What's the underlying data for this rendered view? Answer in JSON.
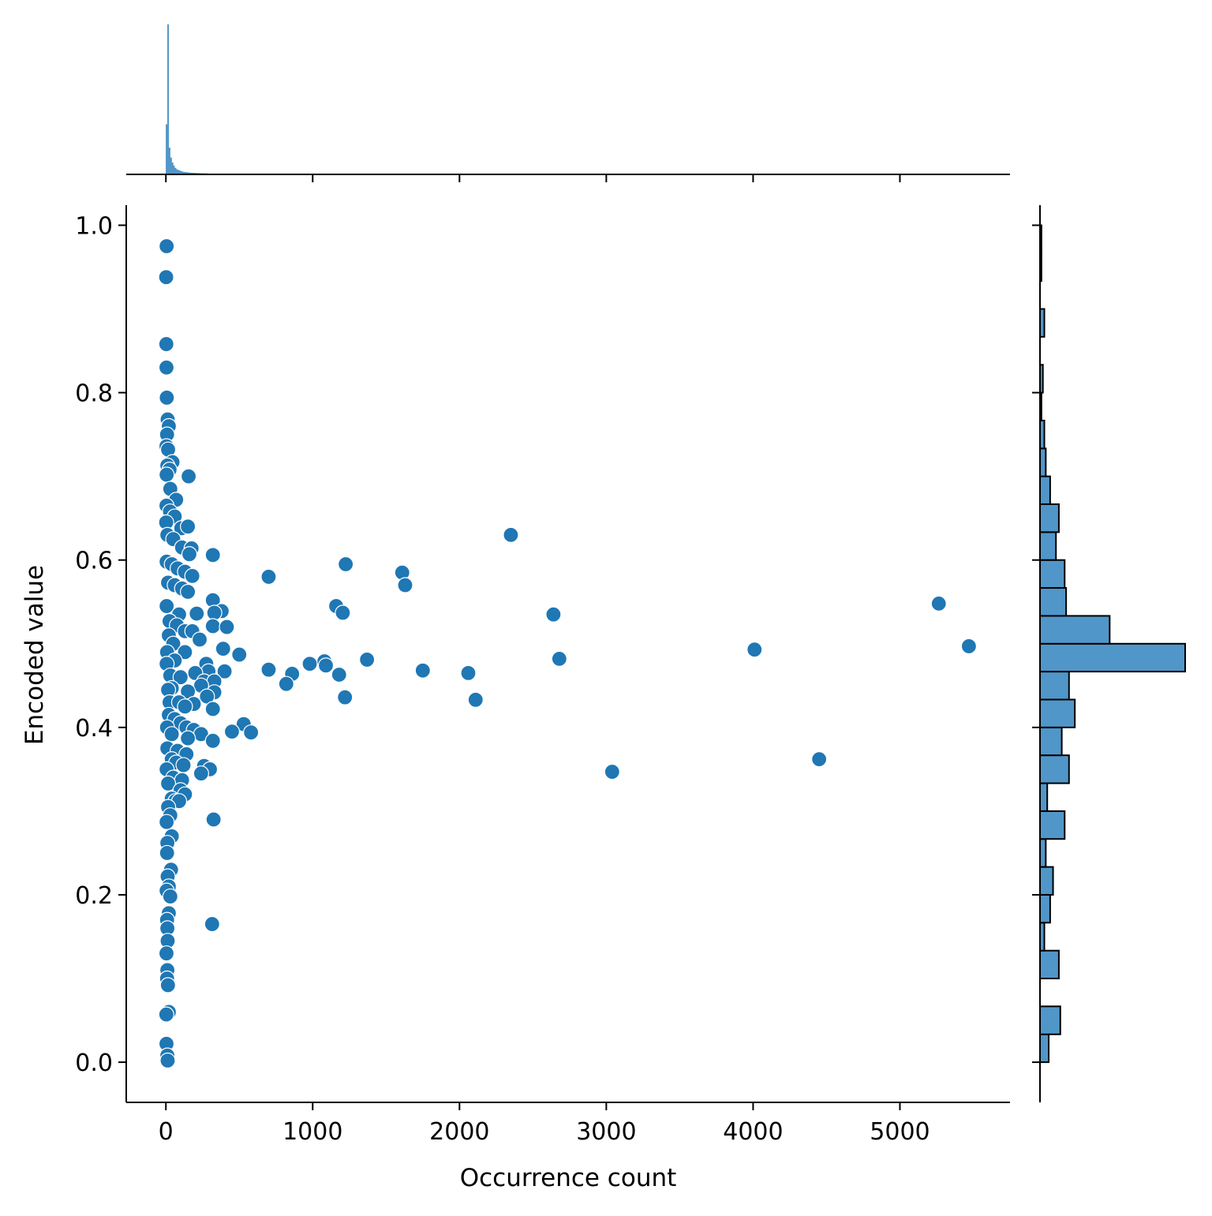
{
  "chart_data": {
    "type": "scatter",
    "kind": "jointplot",
    "title": "",
    "xlabel": "Occurrence count",
    "ylabel": "Encoded value",
    "xlim": [
      -270,
      5750
    ],
    "ylim": [
      -0.048,
      1.024
    ],
    "x_ticks": [
      0,
      1000,
      2000,
      3000,
      4000,
      5000
    ],
    "x_tick_labels": [
      "0",
      "1000",
      "2000",
      "3000",
      "4000",
      "5000"
    ],
    "y_ticks": [
      0.0,
      0.2,
      0.4,
      0.6,
      0.8,
      1.0
    ],
    "y_tick_labels": [
      "0.0",
      "0.2",
      "0.4",
      "0.6",
      "0.8",
      "1.0"
    ],
    "grid": false,
    "legend": "none",
    "colors": {
      "scatter": "#1f77b4",
      "hist_fill": "#5196c8",
      "hist_edge": "#000000",
      "axis": "#000000"
    },
    "points": [
      [
        5,
        0.975
      ],
      [
        2,
        0.938
      ],
      [
        3,
        0.858
      ],
      [
        4,
        0.83
      ],
      [
        6,
        0.794
      ],
      [
        12,
        0.768
      ],
      [
        20,
        0.76
      ],
      [
        8,
        0.75
      ],
      [
        4,
        0.736
      ],
      [
        15,
        0.732
      ],
      [
        45,
        0.717
      ],
      [
        10,
        0.713
      ],
      [
        25,
        0.708
      ],
      [
        5,
        0.702
      ],
      [
        155,
        0.7
      ],
      [
        30,
        0.685
      ],
      [
        70,
        0.672
      ],
      [
        4,
        0.665
      ],
      [
        28,
        0.658
      ],
      [
        60,
        0.652
      ],
      [
        105,
        0.638
      ],
      [
        150,
        0.64
      ],
      [
        2,
        0.645
      ],
      [
        10,
        0.63
      ],
      [
        50,
        0.625
      ],
      [
        110,
        0.615
      ],
      [
        175,
        0.614
      ],
      [
        160,
        0.607
      ],
      [
        320,
        0.606
      ],
      [
        5,
        0.598
      ],
      [
        40,
        0.595
      ],
      [
        80,
        0.59
      ],
      [
        130,
        0.586
      ],
      [
        180,
        0.581
      ],
      [
        700,
        0.58
      ],
      [
        15,
        0.573
      ],
      [
        60,
        0.57
      ],
      [
        110,
        0.566
      ],
      [
        150,
        0.562
      ],
      [
        1225,
        0.595
      ],
      [
        1610,
        0.585
      ],
      [
        1630,
        0.57
      ],
      [
        2350,
        0.63
      ],
      [
        320,
        0.552
      ],
      [
        5,
        0.545
      ],
      [
        1160,
        0.545
      ],
      [
        380,
        0.539
      ],
      [
        1205,
        0.537
      ],
      [
        330,
        0.537
      ],
      [
        90,
        0.535
      ],
      [
        210,
        0.536
      ],
      [
        2640,
        0.535
      ],
      [
        5265,
        0.548
      ],
      [
        25,
        0.527
      ],
      [
        75,
        0.522
      ],
      [
        320,
        0.521
      ],
      [
        415,
        0.52
      ],
      [
        130,
        0.515
      ],
      [
        180,
        0.515
      ],
      [
        20,
        0.51
      ],
      [
        230,
        0.505
      ],
      [
        50,
        0.5
      ],
      [
        4010,
        0.493
      ],
      [
        5470,
        0.497
      ],
      [
        390,
        0.494
      ],
      [
        8,
        0.49
      ],
      [
        130,
        0.49
      ],
      [
        500,
        0.487
      ],
      [
        2680,
        0.482
      ],
      [
        1370,
        0.481
      ],
      [
        60,
        0.48
      ],
      [
        275,
        0.476
      ],
      [
        980,
        0.476
      ],
      [
        1080,
        0.479
      ],
      [
        1090,
        0.474
      ],
      [
        5,
        0.476
      ],
      [
        700,
        0.469
      ],
      [
        1750,
        0.468
      ],
      [
        400,
        0.467
      ],
      [
        290,
        0.467
      ],
      [
        860,
        0.464
      ],
      [
        1180,
        0.463
      ],
      [
        2060,
        0.465
      ],
      [
        200,
        0.465
      ],
      [
        30,
        0.462
      ],
      [
        100,
        0.46
      ],
      [
        260,
        0.455
      ],
      [
        330,
        0.455
      ],
      [
        820,
        0.452
      ],
      [
        240,
        0.45
      ],
      [
        40,
        0.447
      ],
      [
        15,
        0.445
      ],
      [
        150,
        0.443
      ],
      [
        330,
        0.442
      ],
      [
        280,
        0.437
      ],
      [
        1220,
        0.436
      ],
      [
        2110,
        0.433
      ],
      [
        25,
        0.43
      ],
      [
        90,
        0.43
      ],
      [
        190,
        0.428
      ],
      [
        130,
        0.425
      ],
      [
        320,
        0.422
      ],
      [
        20,
        0.415
      ],
      [
        60,
        0.41
      ],
      [
        100,
        0.405
      ],
      [
        530,
        0.404
      ],
      [
        8,
        0.4
      ],
      [
        140,
        0.4
      ],
      [
        190,
        0.397
      ],
      [
        450,
        0.395
      ],
      [
        580,
        0.394
      ],
      [
        240,
        0.392
      ],
      [
        40,
        0.392
      ],
      [
        150,
        0.387
      ],
      [
        320,
        0.384
      ],
      [
        10,
        0.375
      ],
      [
        80,
        0.372
      ],
      [
        140,
        0.368
      ],
      [
        40,
        0.362
      ],
      [
        4450,
        0.362
      ],
      [
        70,
        0.358
      ],
      [
        260,
        0.354
      ],
      [
        120,
        0.355
      ],
      [
        300,
        0.35
      ],
      [
        5,
        0.35
      ],
      [
        240,
        0.345
      ],
      [
        3040,
        0.347
      ],
      [
        50,
        0.34
      ],
      [
        110,
        0.337
      ],
      [
        15,
        0.333
      ],
      [
        100,
        0.325
      ],
      [
        130,
        0.32
      ],
      [
        40,
        0.315
      ],
      [
        65,
        0.312
      ],
      [
        90,
        0.312
      ],
      [
        15,
        0.305
      ],
      [
        30,
        0.295
      ],
      [
        325,
        0.29
      ],
      [
        5,
        0.287
      ],
      [
        40,
        0.27
      ],
      [
        10,
        0.262
      ],
      [
        8,
        0.25
      ],
      [
        35,
        0.23
      ],
      [
        12,
        0.222
      ],
      [
        20,
        0.21
      ],
      [
        5,
        0.205
      ],
      [
        30,
        0.198
      ],
      [
        20,
        0.178
      ],
      [
        8,
        0.17
      ],
      [
        315,
        0.165
      ],
      [
        10,
        0.16
      ],
      [
        12,
        0.145
      ],
      [
        4,
        0.13
      ],
      [
        10,
        0.11
      ],
      [
        8,
        0.1
      ],
      [
        14,
        0.092
      ],
      [
        20,
        0.06
      ],
      [
        3,
        0.057
      ],
      [
        4,
        0.022
      ],
      [
        10,
        0.008
      ],
      [
        12,
        0.002
      ]
    ],
    "x_marginal_hist": {
      "bin_width": 10,
      "counts": [
        300,
        900,
        160,
        100,
        70,
        52,
        38,
        30,
        26,
        22,
        19,
        16,
        14,
        13,
        12,
        11,
        10,
        9,
        9,
        8,
        8,
        7,
        7,
        6,
        6,
        6,
        5,
        5,
        5,
        4,
        4,
        4,
        4,
        3,
        3,
        3
      ]
    },
    "y_marginal_hist": {
      "bin_edges": [
        0.0,
        0.0333,
        0.0667,
        0.1,
        0.1333,
        0.1667,
        0.2,
        0.2333,
        0.2667,
        0.3,
        0.3333,
        0.3667,
        0.4,
        0.4333,
        0.4667,
        0.5,
        0.5333,
        0.5667,
        0.6,
        0.6333,
        0.6667,
        0.7,
        0.7333,
        0.7667,
        0.8,
        0.8333,
        0.8667,
        0.9,
        0.9333,
        0.9667,
        1.0
      ],
      "counts": [
        6,
        14,
        0,
        13,
        3,
        7,
        9,
        4,
        17,
        5,
        20,
        15,
        24,
        20,
        100,
        48,
        18,
        17,
        11,
        13,
        7,
        4,
        3,
        1,
        2,
        0,
        3,
        0,
        1,
        1
      ]
    }
  }
}
